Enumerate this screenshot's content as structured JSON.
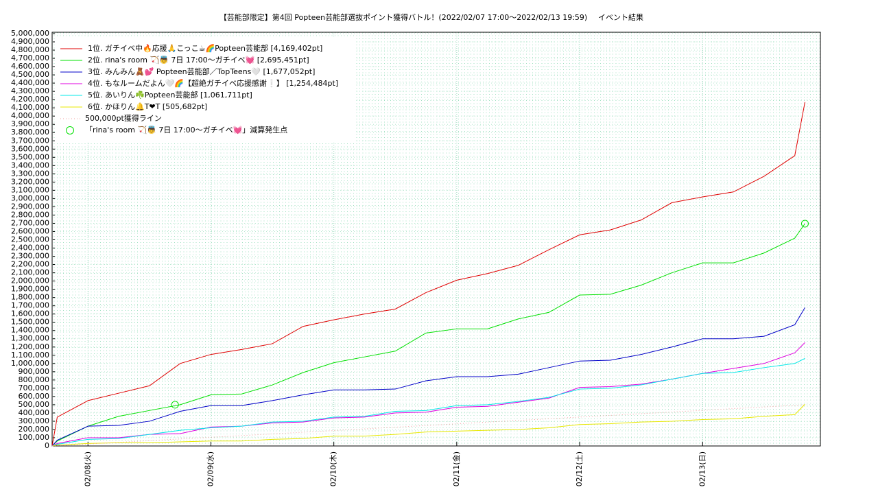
{
  "chart_data": {
    "type": "line",
    "title": "【芸能部限定】第4回 Popteen芸能部選抜ポイント獲得バトル！(2022/02/07 17:00〜2022/02/13 19:59)",
    "subtitle": "イベント結果",
    "x": [
      "2022-02-07T17:00",
      "2022-02-07T18:00",
      "2022-02-08T00:00",
      "2022-02-08T06:00",
      "2022-02-08T12:00",
      "2022-02-08T18:00",
      "2022-02-09T00:00",
      "2022-02-09T06:00",
      "2022-02-09T12:00",
      "2022-02-09T18:00",
      "2022-02-10T00:00",
      "2022-02-10T06:00",
      "2022-02-10T12:00",
      "2022-02-10T18:00",
      "2022-02-11T00:00",
      "2022-02-11T06:00",
      "2022-02-11T12:00",
      "2022-02-11T18:00",
      "2022-02-12T00:00",
      "2022-02-12T06:00",
      "2022-02-12T12:00",
      "2022-02-12T18:00",
      "2022-02-13T00:00",
      "2022-02-13T06:00",
      "2022-02-13T12:00",
      "2022-02-13T18:00",
      "2022-02-13T19:59"
    ],
    "series": [
      {
        "name": "1位. ガチイベ中🔥応援🙏こっこ☕🌈Popteen芸能部 [4,169,402pt]",
        "color": "#e00000",
        "values": [
          0,
          350000,
          550000,
          640000,
          730000,
          1000000,
          1110000,
          1170000,
          1240000,
          1450000,
          1530000,
          1600000,
          1660000,
          1860000,
          2010000,
          2090000,
          2190000,
          2380000,
          2560000,
          2620000,
          2740000,
          2950000,
          3020000,
          3080000,
          3270000,
          3520000,
          4169402
        ]
      },
      {
        "name": "2位. rina's room 🏹👼 7日 17:00〜ガチイベ💓 [2,695,451pt]",
        "color": "#00e000",
        "values": [
          0,
          60000,
          240000,
          360000,
          430000,
          500000,
          620000,
          630000,
          740000,
          890000,
          1010000,
          1080000,
          1150000,
          1370000,
          1420000,
          1420000,
          1540000,
          1620000,
          1830000,
          1840000,
          1950000,
          2100000,
          2220000,
          2220000,
          2340000,
          2520000,
          2695451
        ]
      },
      {
        "name": "3位. みんみん🧸💕 Popteen芸能部／TopTeens🤍 [1,677,052pt]",
        "color": "#0000c8",
        "values": [
          0,
          70000,
          240000,
          250000,
          300000,
          420000,
          490000,
          490000,
          550000,
          620000,
          680000,
          680000,
          690000,
          790000,
          840000,
          840000,
          870000,
          950000,
          1030000,
          1040000,
          1110000,
          1200000,
          1300000,
          1300000,
          1330000,
          1470000,
          1677052
        ]
      },
      {
        "name": "4位. もなルームだよん🤍🌈【超絶ガチイベ応援感謝❕】 [1,254,484pt]",
        "color": "#e000e0",
        "values": [
          0,
          30000,
          100000,
          100000,
          140000,
          150000,
          230000,
          240000,
          280000,
          290000,
          340000,
          350000,
          400000,
          410000,
          470000,
          480000,
          530000,
          580000,
          710000,
          720000,
          750000,
          810000,
          880000,
          940000,
          1000000,
          1130000,
          1254484
        ]
      },
      {
        "name": "5位. あいりん☘️Popteen芸能部 [1,061,711pt]",
        "color": "#00e8e8",
        "values": [
          0,
          20000,
          80000,
          90000,
          140000,
          190000,
          220000,
          240000,
          290000,
          300000,
          350000,
          360000,
          420000,
          430000,
          490000,
          500000,
          540000,
          590000,
          690000,
          700000,
          740000,
          810000,
          880000,
          890000,
          950000,
          1000000,
          1061711
        ]
      },
      {
        "name": "6位. かほりん🔔T❤T [505,682pt]",
        "color": "#e8e800",
        "values": [
          0,
          10000,
          30000,
          40000,
          40000,
          50000,
          60000,
          60000,
          80000,
          90000,
          120000,
          120000,
          140000,
          170000,
          180000,
          190000,
          200000,
          220000,
          260000,
          270000,
          290000,
          300000,
          320000,
          330000,
          360000,
          380000,
          505682
        ]
      },
      {
        "name": "500,000pt獲得ライン",
        "color": "#f0a0a0",
        "style": "dotted",
        "x": [
          "2022-02-07T17:00",
          "2022-02-13T19:59"
        ],
        "values": [
          0,
          500000
        ]
      },
      {
        "name": "「rina's room 🏹👼 7日 17:00〜ガチイベ💓」減算発生点",
        "color": "#00e000",
        "type": "scatter",
        "x": [
          "2022-02-08T17:00",
          "2022-02-13T19:59"
        ],
        "values": [
          500000,
          2695451
        ]
      }
    ],
    "xlim": [
      "2022-02-07T17:00",
      "2022-02-13T23:00"
    ],
    "xticks": [
      {
        "value": "2022-02-08T00:00",
        "label": "02/08(火)"
      },
      {
        "value": "2022-02-09T00:00",
        "label": "02/09(水)"
      },
      {
        "value": "2022-02-10T00:00",
        "label": "02/10(木)"
      },
      {
        "value": "2022-02-11T00:00",
        "label": "02/11(金)"
      },
      {
        "value": "2022-02-12T00:00",
        "label": "02/12(土)"
      },
      {
        "value": "2022-02-13T00:00",
        "label": "02/13(日)"
      }
    ],
    "ylim": [
      0,
      5000000
    ],
    "yticks": [
      0,
      {
        "value": 100000,
        "label": "100,000"
      },
      {
        "value": 200000,
        "label": "200,000"
      },
      {
        "value": 300000,
        "label": "300,000"
      },
      {
        "value": 400000,
        "label": "400,000"
      },
      {
        "value": 500000,
        "label": "500,000"
      },
      {
        "value": 600000,
        "label": "600,000"
      },
      {
        "value": 700000,
        "label": "700,000"
      },
      {
        "value": 800000,
        "label": "800,000"
      },
      {
        "value": 900000,
        "label": "900,000"
      },
      {
        "value": 1000000,
        "label": "1,000,000"
      },
      {
        "value": 1100000,
        "label": "1,100,000"
      },
      {
        "value": 1200000,
        "label": "1,200,000"
      },
      {
        "value": 1300000,
        "label": "1,300,000"
      },
      {
        "value": 1400000,
        "label": "1,400,000"
      },
      {
        "value": 1500000,
        "label": "1,500,000"
      },
      {
        "value": 1600000,
        "label": "1,600,000"
      },
      {
        "value": 1700000,
        "label": "1,700,000"
      },
      {
        "value": 1800000,
        "label": "1,800,000"
      },
      {
        "value": 1900000,
        "label": "1,900,000"
      },
      {
        "value": 2000000,
        "label": "2,000,000"
      },
      {
        "value": 2100000,
        "label": "2,100,000"
      },
      {
        "value": 2200000,
        "label": "2,200,000"
      },
      {
        "value": 2300000,
        "label": "2,300,000"
      },
      {
        "value": 2400000,
        "label": "2,400,000"
      },
      {
        "value": 2500000,
        "label": "2,500,000"
      },
      {
        "value": 2600000,
        "label": "2,600,000"
      },
      {
        "value": 2700000,
        "label": "2,700,000"
      },
      {
        "value": 2800000,
        "label": "2,800,000"
      },
      {
        "value": 2900000,
        "label": "2,900,000"
      },
      {
        "value": 3000000,
        "label": "3,000,000"
      },
      {
        "value": 3100000,
        "label": "3,100,000"
      },
      {
        "value": 3200000,
        "label": "3,200,000"
      },
      {
        "value": 3300000,
        "label": "3,300,000"
      },
      {
        "value": 3400000,
        "label": "3,400,000"
      },
      {
        "value": 3500000,
        "label": "3,500,000"
      },
      {
        "value": 3600000,
        "label": "3,600,000"
      },
      {
        "value": 3700000,
        "label": "3,700,000"
      },
      {
        "value": 3800000,
        "label": "3,800,000"
      },
      {
        "value": 3900000,
        "label": "3,900,000"
      },
      {
        "value": 4000000,
        "label": "4,000,000"
      },
      {
        "value": 4100000,
        "label": "4,100,000"
      },
      {
        "value": 4200000,
        "label": "4,200,000"
      },
      {
        "value": 4300000,
        "label": "4,300,000"
      },
      {
        "value": 4400000,
        "label": "4,400,000"
      },
      {
        "value": 4500000,
        "label": "4,500,000"
      },
      {
        "value": 4600000,
        "label": "4,600,000"
      },
      {
        "value": 4700000,
        "label": "4,700,000"
      },
      {
        "value": 4800000,
        "label": "4,800,000"
      },
      {
        "value": 4900000,
        "label": "4,900,000"
      },
      {
        "value": 5000000,
        "label": "5,000,000"
      }
    ],
    "grid": true,
    "legend": "top-left"
  }
}
